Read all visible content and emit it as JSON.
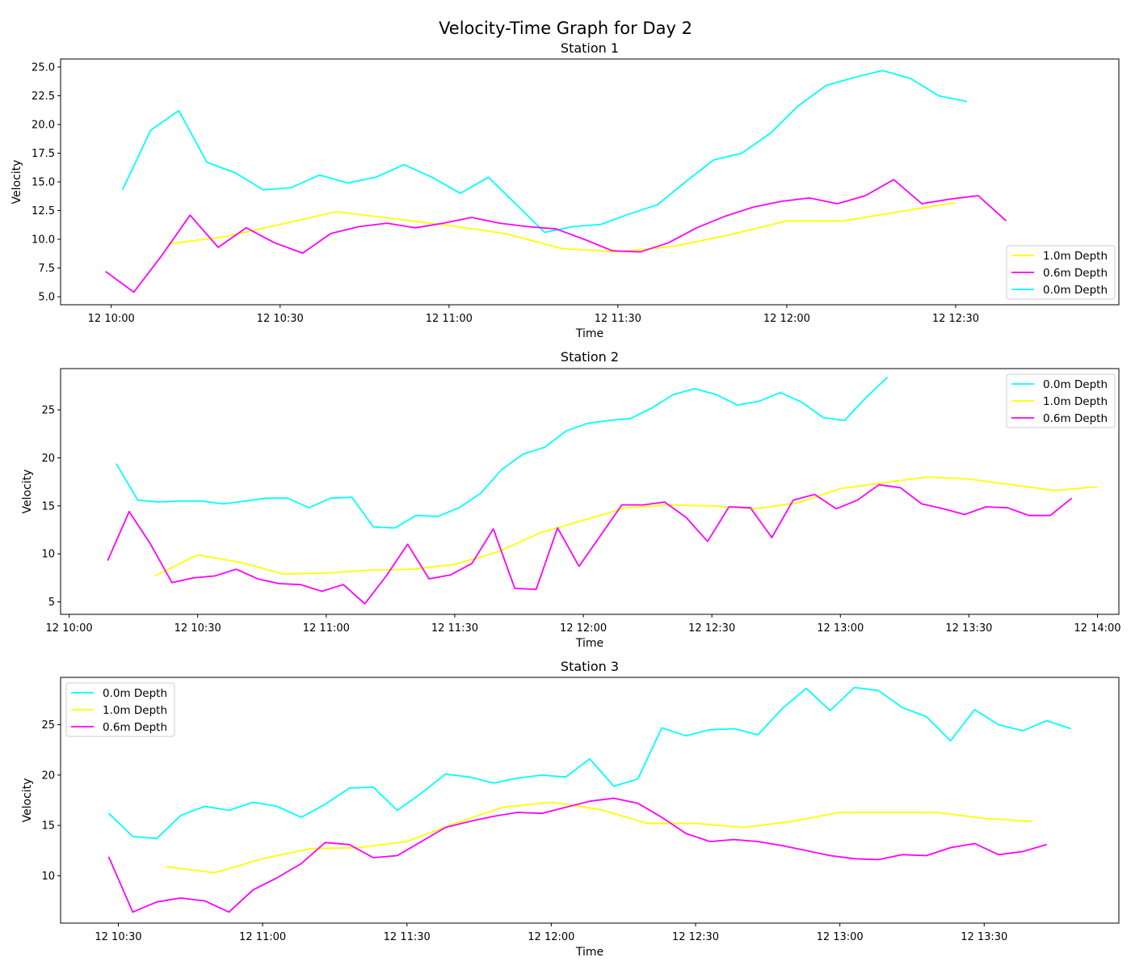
{
  "figure": {
    "title": "Velocity-Time Graph for Day 2"
  },
  "colors": {
    "0.0m Depth": "#00ffff",
    "1.0m Depth": "#ffff00",
    "0.6m Depth": "#ff00ff"
  },
  "chart_data": [
    {
      "type": "line",
      "title": "Station 1",
      "xlabel": "Time",
      "ylabel": "Velocity",
      "xlim": [
        "10:00",
        "12:40"
      ],
      "x_domain_min": [
        -9,
        179
      ],
      "ylim": [
        4.3,
        25.7
      ],
      "yticks": [
        5.0,
        7.5,
        10.0,
        12.5,
        15.0,
        17.5,
        20.0,
        22.5,
        25.0
      ],
      "ytick_labels": [
        "5.0",
        "7.5",
        "10.0",
        "12.5",
        "15.0",
        "17.5",
        "20.0",
        "22.5",
        "25.0"
      ],
      "xticks": [
        "12 10:00",
        "12 10:30",
        "12 11:00",
        "12 11:30",
        "12 12:00",
        "12 12:30"
      ],
      "legend_position": "lower-right",
      "legend_order": [
        "1.0m Depth",
        "0.6m Depth",
        "0.0m Depth"
      ],
      "series": [
        {
          "name": "0.0m Depth",
          "x": [
            "10:02",
            "10:07",
            "10:12",
            "10:17",
            "10:22",
            "10:27",
            "10:32",
            "10:37",
            "10:42",
            "10:47",
            "10:52",
            "10:57",
            "11:02",
            "11:07",
            "11:12",
            "11:17",
            "11:22",
            "11:27",
            "11:32",
            "11:37",
            "11:42",
            "11:47",
            "11:52",
            "11:57",
            "12:02",
            "12:07",
            "12:12",
            "12:17",
            "12:22",
            "12:27",
            "12:32"
          ],
          "values": [
            14.3,
            19.5,
            21.2,
            16.7,
            15.8,
            14.3,
            14.5,
            15.6,
            14.9,
            15.4,
            16.5,
            15.4,
            14.0,
            15.4,
            13.0,
            10.6,
            11.1,
            11.3,
            12.2,
            13.0,
            15.0,
            16.9,
            17.5,
            19.2,
            21.6,
            23.4,
            24.1,
            24.7,
            24.0,
            22.5,
            22.0
          ]
        },
        {
          "name": "1.0m Depth",
          "x": [
            "10:10",
            "10:20",
            "10:30",
            "10:40",
            "10:50",
            "11:00",
            "11:10",
            "11:20",
            "11:30",
            "11:40",
            "11:50",
            "12:00",
            "12:10",
            "12:20",
            "12:30"
          ],
          "values": [
            9.6,
            10.2,
            11.3,
            12.4,
            11.8,
            11.2,
            10.5,
            9.2,
            8.9,
            9.4,
            10.4,
            11.6,
            11.6,
            12.4,
            13.2
          ]
        },
        {
          "name": "0.6m Depth",
          "x": [
            "09:59",
            "10:04",
            "10:09",
            "10:14",
            "10:19",
            "10:24",
            "10:29",
            "10:34",
            "10:39",
            "10:44",
            "10:49",
            "10:54",
            "10:59",
            "11:04",
            "11:09",
            "11:14",
            "11:19",
            "11:24",
            "11:29",
            "11:34",
            "11:39",
            "11:44",
            "11:49",
            "11:54",
            "11:59",
            "12:04",
            "12:09",
            "12:14",
            "12:19",
            "12:24",
            "12:29",
            "12:34",
            "12:39"
          ],
          "values": [
            7.2,
            5.4,
            8.6,
            12.1,
            9.3,
            11.0,
            9.7,
            8.8,
            10.5,
            11.1,
            11.4,
            11.0,
            11.4,
            11.9,
            11.4,
            11.1,
            10.9,
            10.0,
            9.0,
            8.9,
            9.7,
            11.0,
            12.0,
            12.8,
            13.3,
            13.6,
            13.1,
            13.8,
            15.2,
            13.1,
            13.5,
            13.8,
            11.6
          ]
        }
      ]
    },
    {
      "type": "line",
      "title": "Station 2",
      "xlabel": "Time",
      "ylabel": "Velocity",
      "xlim": [
        "10:00",
        "14:00"
      ],
      "x_domain_min": [
        -2,
        245
      ],
      "ylim": [
        3.7,
        29.3
      ],
      "yticks": [
        5,
        10,
        15,
        20,
        25
      ],
      "ytick_labels": [
        "5",
        "10",
        "15",
        "20",
        "25"
      ],
      "xticks": [
        "12 10:00",
        "12 10:30",
        "12 11:00",
        "12 11:30",
        "12 12:00",
        "12 12:30",
        "12 13:00",
        "12 13:30",
        "12 14:00"
      ],
      "legend_position": "upper-right",
      "legend_order": [
        "0.0m Depth",
        "1.0m Depth",
        "0.6m Depth"
      ],
      "series": [
        {
          "name": "0.0m Depth",
          "x": [
            "10:11",
            "10:16",
            "10:21",
            "10:26",
            "10:31",
            "10:36",
            "10:41",
            "10:46",
            "10:51",
            "10:56",
            "11:01",
            "11:06",
            "11:11",
            "11:16",
            "11:21",
            "11:26",
            "11:31",
            "11:36",
            "11:41",
            "11:46",
            "11:51",
            "11:56",
            "12:01",
            "12:06",
            "12:11",
            "12:16",
            "12:21",
            "12:26",
            "12:31",
            "12:36",
            "12:41",
            "12:46",
            "12:51",
            "12:56",
            "13:01",
            "13:06",
            "13:11"
          ],
          "values": [
            19.4,
            15.6,
            15.4,
            15.5,
            15.5,
            15.2,
            15.5,
            15.8,
            15.8,
            14.8,
            15.8,
            15.9,
            12.8,
            12.7,
            14.0,
            13.9,
            14.8,
            16.3,
            18.8,
            20.4,
            21.1,
            22.8,
            23.6,
            23.9,
            24.1,
            25.2,
            26.6,
            27.2,
            26.6,
            25.5,
            25.9,
            26.8,
            25.8,
            24.2,
            23.9,
            26.3,
            28.4
          ]
        },
        {
          "name": "1.0m Depth",
          "x": [
            "10:20",
            "10:30",
            "10:40",
            "10:50",
            "11:00",
            "11:10",
            "11:20",
            "11:30",
            "11:40",
            "11:50",
            "12:00",
            "12:10",
            "12:20",
            "12:30",
            "12:40",
            "12:50",
            "13:00",
            "13:10",
            "13:20",
            "13:30",
            "13:40",
            "13:50",
            "14:00"
          ],
          "values": [
            7.7,
            9.9,
            9.1,
            7.9,
            8.0,
            8.3,
            8.4,
            8.9,
            10.2,
            12.2,
            13.5,
            14.8,
            15.1,
            15.0,
            14.7,
            15.3,
            16.8,
            17.4,
            18.0,
            17.8,
            17.2,
            16.6,
            17.0
          ]
        },
        {
          "name": "0.6m Depth",
          "x": [
            "10:09",
            "10:14",
            "10:19",
            "10:24",
            "10:29",
            "10:34",
            "10:39",
            "10:44",
            "10:49",
            "10:54",
            "10:59",
            "11:04",
            "11:09",
            "11:14",
            "11:19",
            "11:24",
            "11:29",
            "11:34",
            "11:39",
            "11:44",
            "11:49",
            "11:54",
            "11:59",
            "12:04",
            "12:09",
            "12:14",
            "12:19",
            "12:24",
            "12:29",
            "12:34",
            "12:39",
            "12:44",
            "12:49",
            "12:54",
            "12:59",
            "13:04",
            "13:09",
            "13:14",
            "13:19",
            "13:24",
            "13:29",
            "13:34",
            "13:39",
            "13:44",
            "13:49",
            "13:54"
          ],
          "values": [
            9.3,
            14.4,
            11.0,
            7.0,
            7.5,
            7.7,
            8.4,
            7.4,
            6.9,
            6.8,
            6.1,
            6.8,
            4.8,
            7.7,
            11.0,
            7.4,
            7.8,
            9.0,
            12.6,
            6.4,
            6.3,
            12.7,
            8.7,
            11.9,
            15.1,
            15.1,
            15.4,
            13.8,
            11.3,
            14.9,
            14.8,
            11.7,
            15.6,
            16.2,
            14.7,
            15.6,
            17.2,
            16.9,
            15.2,
            14.7,
            14.1,
            14.9,
            14.8,
            14.0,
            14.0,
            15.8
          ]
        }
      ]
    },
    {
      "type": "line",
      "title": "Station 3",
      "xlabel": "Time",
      "ylabel": "Velocity",
      "xlim": [
        "10:30",
        "13:50"
      ],
      "x_domain_min": [
        18,
        238
      ],
      "ylim": [
        5.3,
        29.7
      ],
      "yticks": [
        10,
        15,
        20,
        25
      ],
      "ytick_labels": [
        "10",
        "15",
        "20",
        "25"
      ],
      "xticks": [
        "12 10:30",
        "12 11:00",
        "12 11:30",
        "12 12:00",
        "12 12:30",
        "12 13:00",
        "12 13:30"
      ],
      "legend_position": "upper-left",
      "legend_order": [
        "0.0m Depth",
        "1.0m Depth",
        "0.6m Depth"
      ],
      "series": [
        {
          "name": "0.0m Depth",
          "x": [
            "10:28",
            "10:33",
            "10:38",
            "10:43",
            "10:48",
            "10:53",
            "10:58",
            "11:03",
            "11:08",
            "11:13",
            "11:18",
            "11:23",
            "11:28",
            "11:33",
            "11:38",
            "11:43",
            "11:48",
            "11:53",
            "11:58",
            "12:03",
            "12:08",
            "12:13",
            "12:18",
            "12:23",
            "12:28",
            "12:33",
            "12:38",
            "12:43",
            "12:48",
            "12:53",
            "12:58",
            "13:03",
            "13:08",
            "13:13",
            "13:18",
            "13:23",
            "13:28",
            "13:33",
            "13:38",
            "13:43",
            "13:48"
          ],
          "values": [
            16.2,
            13.9,
            13.7,
            16.0,
            16.9,
            16.5,
            17.3,
            16.9,
            15.8,
            17.1,
            18.7,
            18.8,
            16.5,
            18.2,
            20.1,
            19.8,
            19.2,
            19.7,
            20.0,
            19.8,
            21.6,
            18.9,
            19.6,
            24.7,
            23.9,
            24.5,
            24.6,
            24.0,
            26.6,
            28.6,
            26.4,
            28.7,
            28.4,
            26.7,
            25.8,
            23.4,
            26.5,
            25.0,
            24.4,
            25.4,
            24.6
          ]
        },
        {
          "name": "1.0m Depth",
          "x": [
            "10:40",
            "10:50",
            "11:00",
            "11:10",
            "11:20",
            "11:30",
            "11:40",
            "11:50",
            "12:00",
            "12:10",
            "12:20",
            "12:30",
            "12:40",
            "12:50",
            "13:00",
            "13:10",
            "13:20",
            "13:30",
            "13:40"
          ],
          "values": [
            10.9,
            10.3,
            11.7,
            12.7,
            12.8,
            13.4,
            15.2,
            16.8,
            17.3,
            16.6,
            15.2,
            15.2,
            14.8,
            15.4,
            16.3,
            16.3,
            16.3,
            15.7,
            15.4
          ]
        },
        {
          "name": "0.6m Depth",
          "x": [
            "10:28",
            "10:33",
            "10:38",
            "10:43",
            "10:48",
            "10:53",
            "10:58",
            "11:03",
            "11:08",
            "11:13",
            "11:18",
            "11:23",
            "11:28",
            "11:33",
            "11:38",
            "11:43",
            "11:48",
            "11:53",
            "11:58",
            "12:03",
            "12:08",
            "12:13",
            "12:18",
            "12:23",
            "12:28",
            "12:33",
            "12:38",
            "12:43",
            "12:48",
            "12:53",
            "12:58",
            "13:03",
            "13:08",
            "13:13",
            "13:18",
            "13:23",
            "13:28",
            "13:33",
            "13:38",
            "13:43"
          ],
          "values": [
            11.9,
            6.4,
            7.4,
            7.8,
            7.5,
            6.4,
            8.6,
            9.8,
            11.2,
            13.3,
            13.1,
            11.8,
            12.0,
            13.4,
            14.8,
            15.4,
            15.9,
            16.3,
            16.2,
            16.8,
            17.4,
            17.7,
            17.2,
            15.8,
            14.2,
            13.4,
            13.6,
            13.4,
            13.0,
            12.5,
            12.0,
            11.7,
            11.6,
            12.1,
            12.0,
            12.8,
            13.2,
            12.1,
            12.4,
            13.1
          ]
        }
      ]
    }
  ]
}
